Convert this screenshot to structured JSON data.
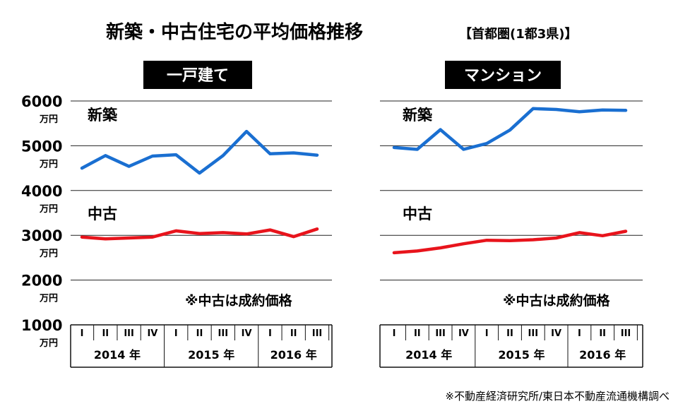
{
  "title": "新築・中古住宅の平均価格推移",
  "subtitle": "【首都圏(1都3県)】",
  "source": "※不動産経済研究所/東日本不動産流通機構調べ",
  "colors": {
    "new": "#1a6fd1",
    "used": "#e8141c",
    "grid": "#222222",
    "label_bg": "#000000"
  },
  "y_axis": {
    "ticks": [
      {
        "value": 6000,
        "label": "6000",
        "unit": "万円"
      },
      {
        "value": 5000,
        "label": "5000",
        "unit": "万円"
      },
      {
        "value": 4000,
        "label": "4000",
        "unit": "万円"
      },
      {
        "value": 3000,
        "label": "3000",
        "unit": "万円"
      },
      {
        "value": 2000,
        "label": "2000",
        "unit": "万円"
      },
      {
        "value": 1000,
        "label": "1000",
        "unit": "万円"
      }
    ]
  },
  "chart_data": [
    {
      "type": "line",
      "title": "一戸建て",
      "note": "※中古は成約価格",
      "ylim": [
        1000,
        6000
      ],
      "categories": [
        "I",
        "II",
        "III",
        "IV",
        "I",
        "II",
        "III",
        "IV",
        "I",
        "II",
        "III"
      ],
      "years": [
        {
          "label": "2014 年",
          "quarters": 4
        },
        {
          "label": "2015 年",
          "quarters": 4
        },
        {
          "label": "2016 年",
          "quarters": 3
        }
      ],
      "series": [
        {
          "name": "新築",
          "key": "new",
          "values": [
            4500,
            4780,
            4540,
            4770,
            4800,
            4390,
            4780,
            5320,
            4820,
            4840,
            4790
          ]
        },
        {
          "name": "中古",
          "key": "used",
          "values": [
            2960,
            2920,
            2940,
            2960,
            3100,
            3040,
            3060,
            3030,
            3120,
            2970,
            3140
          ]
        }
      ]
    },
    {
      "type": "line",
      "title": "マンション",
      "note": "※中古は成約価格",
      "ylim": [
        1000,
        6000
      ],
      "categories": [
        "I",
        "II",
        "III",
        "IV",
        "I",
        "II",
        "III",
        "IV",
        "I",
        "II",
        "III"
      ],
      "years": [
        {
          "label": "2014 年",
          "quarters": 4
        },
        {
          "label": "2015 年",
          "quarters": 4
        },
        {
          "label": "2016 年",
          "quarters": 3
        }
      ],
      "series": [
        {
          "name": "新築",
          "key": "new",
          "values": [
            4960,
            4920,
            5360,
            4920,
            5050,
            5350,
            5830,
            5810,
            5760,
            5800,
            5790
          ]
        },
        {
          "name": "中古",
          "key": "used",
          "values": [
            2610,
            2650,
            2720,
            2810,
            2890,
            2880,
            2900,
            2940,
            3060,
            2990,
            3090
          ]
        }
      ]
    }
  ]
}
